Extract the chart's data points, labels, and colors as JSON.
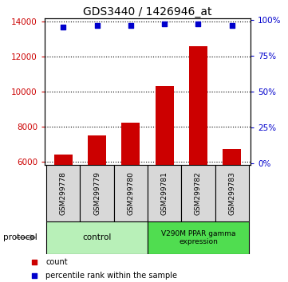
{
  "title": "GDS3440 / 1426946_at",
  "samples": [
    "GSM299778",
    "GSM299779",
    "GSM299780",
    "GSM299781",
    "GSM299782",
    "GSM299783"
  ],
  "counts": [
    6400,
    7500,
    8200,
    10300,
    12600,
    6700
  ],
  "percentiles": [
    95,
    96,
    96,
    97,
    97,
    96
  ],
  "ylim_left": [
    5800,
    14200
  ],
  "ylim_right": [
    -1,
    101
  ],
  "yticks_left": [
    6000,
    8000,
    10000,
    12000,
    14000
  ],
  "yticks_right": [
    0,
    25,
    50,
    75,
    100
  ],
  "bar_color": "#cc0000",
  "dot_color": "#0000cc",
  "bar_width": 0.55,
  "title_fontsize": 10,
  "tick_fontsize": 7.5,
  "left_tick_color": "#cc0000",
  "right_tick_color": "#0000cc",
  "sample_bg_color": "#d8d8d8",
  "ctrl_color": "#b8f0b8",
  "expr_color": "#50dd50",
  "protocol_label": "protocol",
  "group_labels": [
    "control",
    "V290M PPAR gamma\nexpression"
  ],
  "legend_items": [
    "count",
    "percentile rank within the sample"
  ]
}
